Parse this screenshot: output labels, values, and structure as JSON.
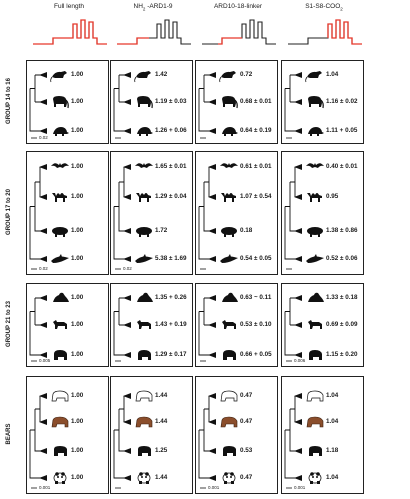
{
  "columns": [
    {
      "label": "Full length"
    },
    {
      "label_pre": "NH",
      "label_sub": "2",
      "label_post": " -ARD1-9"
    },
    {
      "label": "ARD10-18-linker"
    },
    {
      "label_pre": "S1-S8-COO",
      "label_sub": "2",
      "label_post": ""
    }
  ],
  "colors": {
    "domain_highlight": "#e8372a",
    "domain_base": "#222222",
    "bear_brown": "#8b4e2c"
  },
  "groups": [
    {
      "label": "GROUP 14 to 16",
      "scale": [
        "0.02",
        "",
        "",
        ""
      ],
      "rows": [
        {
          "animal": "possum-icon",
          "values": [
            "1.00",
            "1.42",
            "0.72",
            "1.04"
          ]
        },
        {
          "animal": "elephant-icon",
          "values": [
            "1.00",
            "1.19 ± 0.03",
            "0.68 ± 0.01",
            "1.16 ± 0.02"
          ]
        },
        {
          "animal": "armadillo-icon",
          "values": [
            "1.00",
            "1.26 + 0.06",
            "0.64 ± 0.19",
            "1.11 + 0.05"
          ]
        }
      ]
    },
    {
      "label": "GROUP 17 to 20",
      "scale": [
        "0.02",
        "0.02",
        "",
        ""
      ],
      "rows": [
        {
          "animal": "bat-icon",
          "values": [
            "1.00",
            "1.65 ± 0.01",
            "0.61 ± 0.01",
            "0.40 ± 0.01"
          ]
        },
        {
          "animal": "camel-icon",
          "values": [
            "1.00",
            "1.29 ± 0.04",
            "1.07 ± 0.54",
            "0.95"
          ]
        },
        {
          "animal": "pig-icon",
          "values": [
            "1.00",
            "1.72",
            "0.18",
            "1.38 ± 0.86"
          ]
        },
        {
          "animal": "dolphin-icon",
          "values": [
            "1.00",
            "5.38 ± 1.69",
            "0.54 ± 0.05",
            "0.52 ± 0.06"
          ]
        }
      ]
    },
    {
      "label": "GROUP 21 to 23",
      "scale": [
        "0.005",
        "",
        "",
        "0.006"
      ],
      "rows": [
        {
          "animal": "seal-icon",
          "values": [
            "1.00",
            "1.35 + 0.26",
            "0.63 ~ 0.11",
            "1.33 ± 0.18"
          ]
        },
        {
          "animal": "dog-icon",
          "values": [
            "1.00",
            "1.43 + 0.19",
            "0.53 ± 0.10",
            "0.69 ± 0.09"
          ]
        },
        {
          "animal": "bear-icon",
          "values": [
            "1.00",
            "1.29 ± 0.17",
            "0.66 + 0.05",
            "1.15 ± 0.20"
          ]
        }
      ]
    },
    {
      "label": "BEARS",
      "scale": [
        "0.001",
        "",
        "0.001",
        "0.001"
      ],
      "rows": [
        {
          "animal": "polar-bear-icon",
          "values": [
            "1.00",
            "1.44",
            "0.47",
            "1.04"
          ]
        },
        {
          "animal": "brown-bear-icon",
          "values": [
            "1.00",
            "1.44",
            "0.47",
            "1.04"
          ]
        },
        {
          "animal": "black-bear-icon",
          "values": [
            "1.00",
            "1.25",
            "0.53",
            "1.18"
          ]
        },
        {
          "animal": "panda-icon",
          "values": [
            "1.00",
            "1.44",
            "0.47",
            "1.04"
          ]
        }
      ]
    }
  ]
}
